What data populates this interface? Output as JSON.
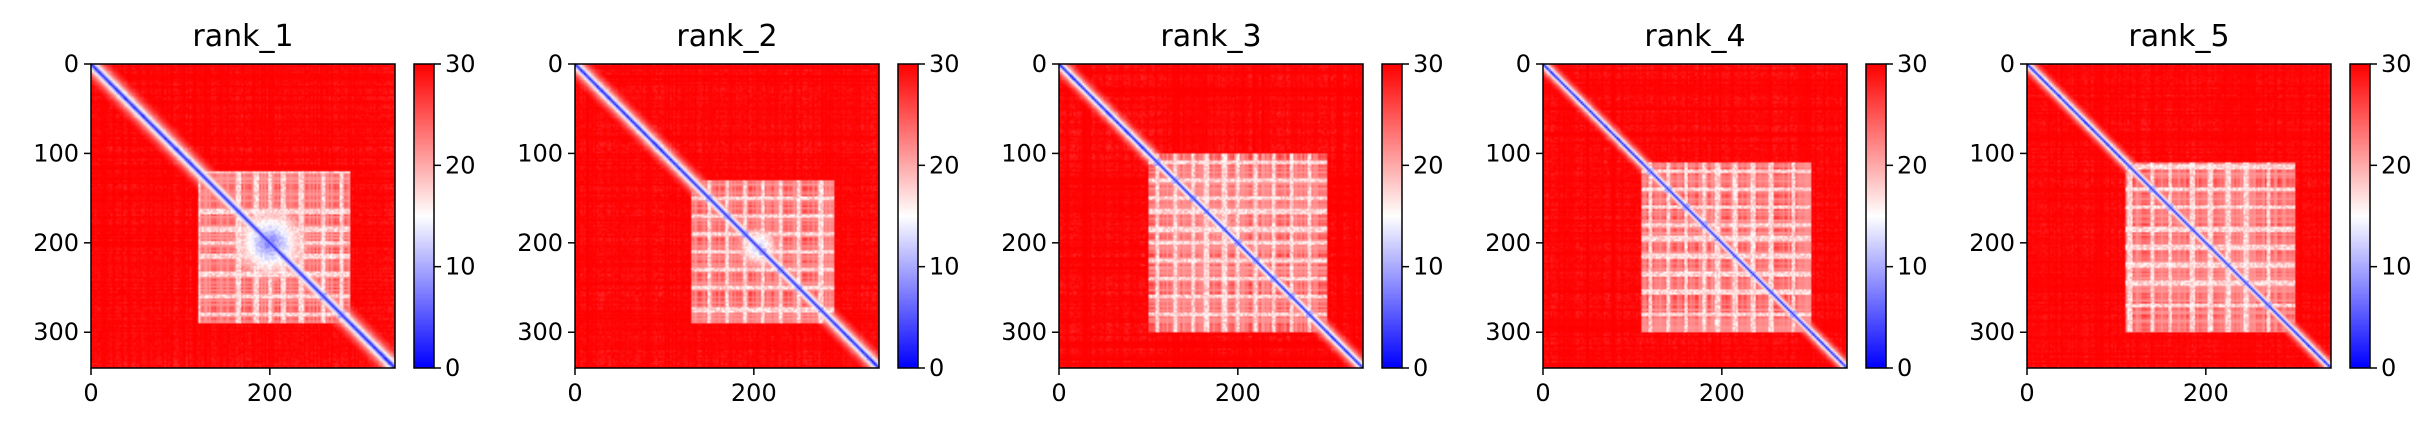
{
  "chart_data": [
    {
      "type": "heatmap",
      "title": "rank_1",
      "n": 340,
      "x_ticks": [
        0,
        200
      ],
      "y_ticks": [
        0,
        100,
        200,
        300
      ],
      "xlim": [
        0,
        340
      ],
      "ylim": [
        340,
        0
      ],
      "colorbar": {
        "min": 0,
        "max": 30,
        "ticks": [
          0,
          10,
          20,
          30
        ],
        "colormap": "bwr"
      },
      "features": {
        "diag_width": 9,
        "cluster": [
          120,
          290
        ],
        "blob": [
          150,
          250
        ],
        "blob_strength": 0.9,
        "stripes": [
          120,
          165,
          185,
          200,
          215,
          235,
          260,
          280
        ]
      }
    },
    {
      "type": "heatmap",
      "title": "rank_2",
      "n": 340,
      "x_ticks": [
        0,
        200
      ],
      "y_ticks": [
        0,
        100,
        200,
        300
      ],
      "xlim": [
        0,
        340
      ],
      "ylim": [
        340,
        0
      ],
      "colorbar": {
        "min": 0,
        "max": 30,
        "ticks": [
          0,
          10,
          20,
          30
        ],
        "colormap": "bwr"
      },
      "features": {
        "diag_width": 8,
        "cluster": [
          130,
          290
        ],
        "blob": [
          175,
          235
        ],
        "blob_strength": 0.75,
        "stripes": [
          150,
          170,
          190,
          210,
          230,
          250,
          275
        ]
      }
    },
    {
      "type": "heatmap",
      "title": "rank_3",
      "n": 340,
      "x_ticks": [
        0,
        200
      ],
      "y_ticks": [
        0,
        100,
        200,
        300
      ],
      "xlim": [
        0,
        340
      ],
      "ylim": [
        340,
        0
      ],
      "colorbar": {
        "min": 0,
        "max": 30,
        "ticks": [
          0,
          10,
          20,
          30
        ],
        "colormap": "bwr"
      },
      "features": {
        "diag_width": 7,
        "cluster": [
          100,
          300
        ],
        "blob": [
          150,
          210
        ],
        "blob_strength": 0.45,
        "stripes": [
          110,
          130,
          150,
          165,
          185,
          200,
          220,
          240,
          260,
          280
        ]
      }
    },
    {
      "type": "heatmap",
      "title": "rank_4",
      "n": 340,
      "x_ticks": [
        0,
        200
      ],
      "y_ticks": [
        0,
        100,
        200,
        300
      ],
      "xlim": [
        0,
        340
      ],
      "ylim": [
        340,
        0
      ],
      "colorbar": {
        "min": 0,
        "max": 30,
        "ticks": [
          0,
          10,
          20,
          30
        ],
        "colormap": "bwr"
      },
      "features": {
        "diag_width": 6,
        "cluster": [
          110,
          300
        ],
        "blob": [
          150,
          200
        ],
        "blob_strength": 0.4,
        "stripes": [
          120,
          140,
          160,
          180,
          195,
          215,
          235,
          255,
          280
        ]
      }
    },
    {
      "type": "heatmap",
      "title": "rank_5",
      "n": 340,
      "x_ticks": [
        0,
        200
      ],
      "y_ticks": [
        0,
        100,
        200,
        300
      ],
      "xlim": [
        0,
        340
      ],
      "ylim": [
        340,
        0
      ],
      "colorbar": {
        "min": 0,
        "max": 30,
        "ticks": [
          0,
          10,
          20,
          30
        ],
        "colormap": "bwr"
      },
      "features": {
        "diag_width": 6,
        "cluster": [
          110,
          300
        ],
        "blob": [
          150,
          200
        ],
        "blob_strength": 0.35,
        "stripes": [
          115,
          140,
          160,
          185,
          205,
          225,
          245,
          270
        ]
      }
    }
  ]
}
